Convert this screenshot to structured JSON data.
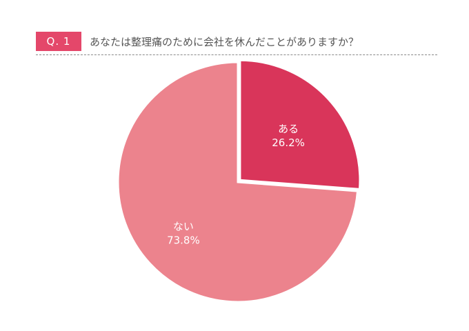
{
  "header": {
    "badge": "Q. 1",
    "question": "あなたは整理痛のために会社を休んだことがありますか？"
  },
  "colors": {
    "badge": "#e4476a",
    "slice_yes": "#d9355a",
    "slice_no": "#ec838d"
  },
  "chart_data": {
    "type": "pie",
    "title": "",
    "slices": [
      {
        "label": "ある",
        "value": 26.2,
        "display": "26.2%",
        "color": "#d9355a",
        "exploded": true
      },
      {
        "label": "ない",
        "value": 73.8,
        "display": "73.8%",
        "color": "#ec838d",
        "exploded": false
      }
    ],
    "start_angle": "12 o'clock",
    "direction": "clockwise"
  }
}
